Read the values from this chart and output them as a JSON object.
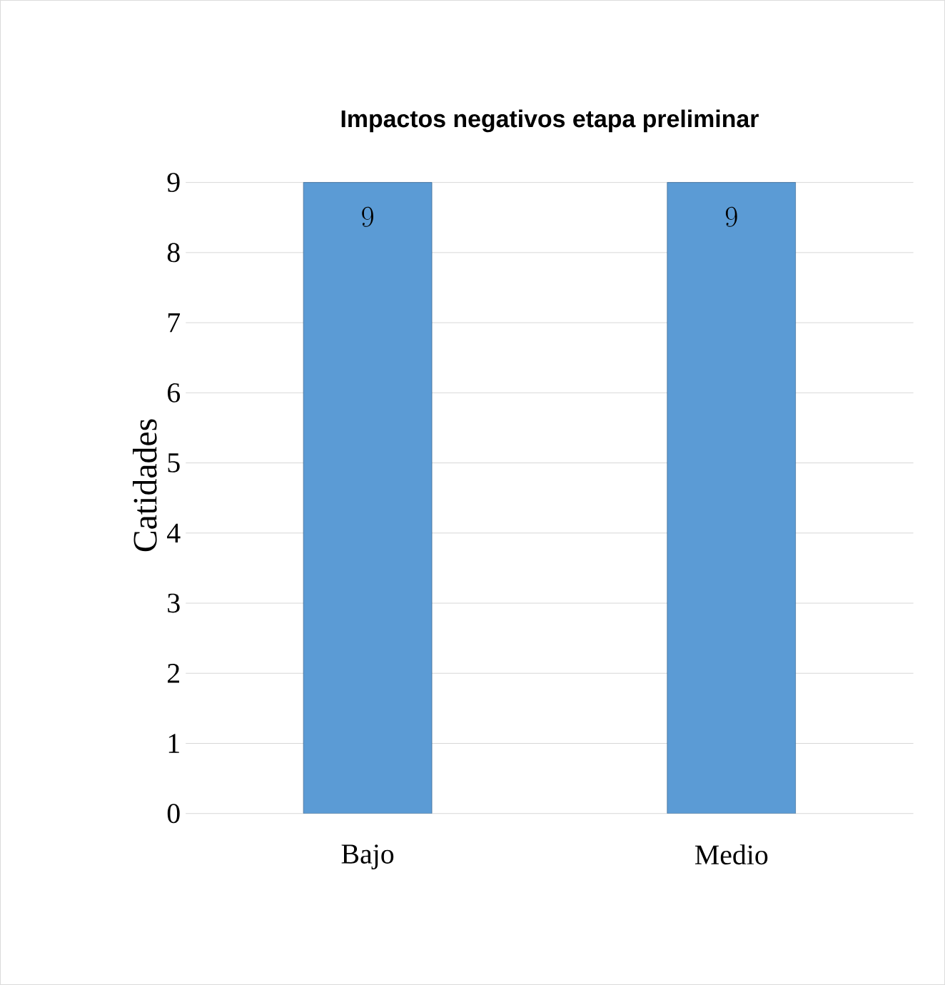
{
  "chart_data": {
    "type": "bar",
    "title": "Impactos negativos etapa preliminar",
    "ylabel": "Catidades",
    "categories": [
      "Bajo",
      "Medio"
    ],
    "values": [
      9,
      9
    ],
    "color": "#5b9bd5",
    "ylim": [
      0,
      9
    ],
    "yticks": [
      0,
      1,
      2,
      3,
      4,
      5,
      6,
      7,
      8,
      9
    ],
    "grid": "y",
    "data_labels": true
  }
}
